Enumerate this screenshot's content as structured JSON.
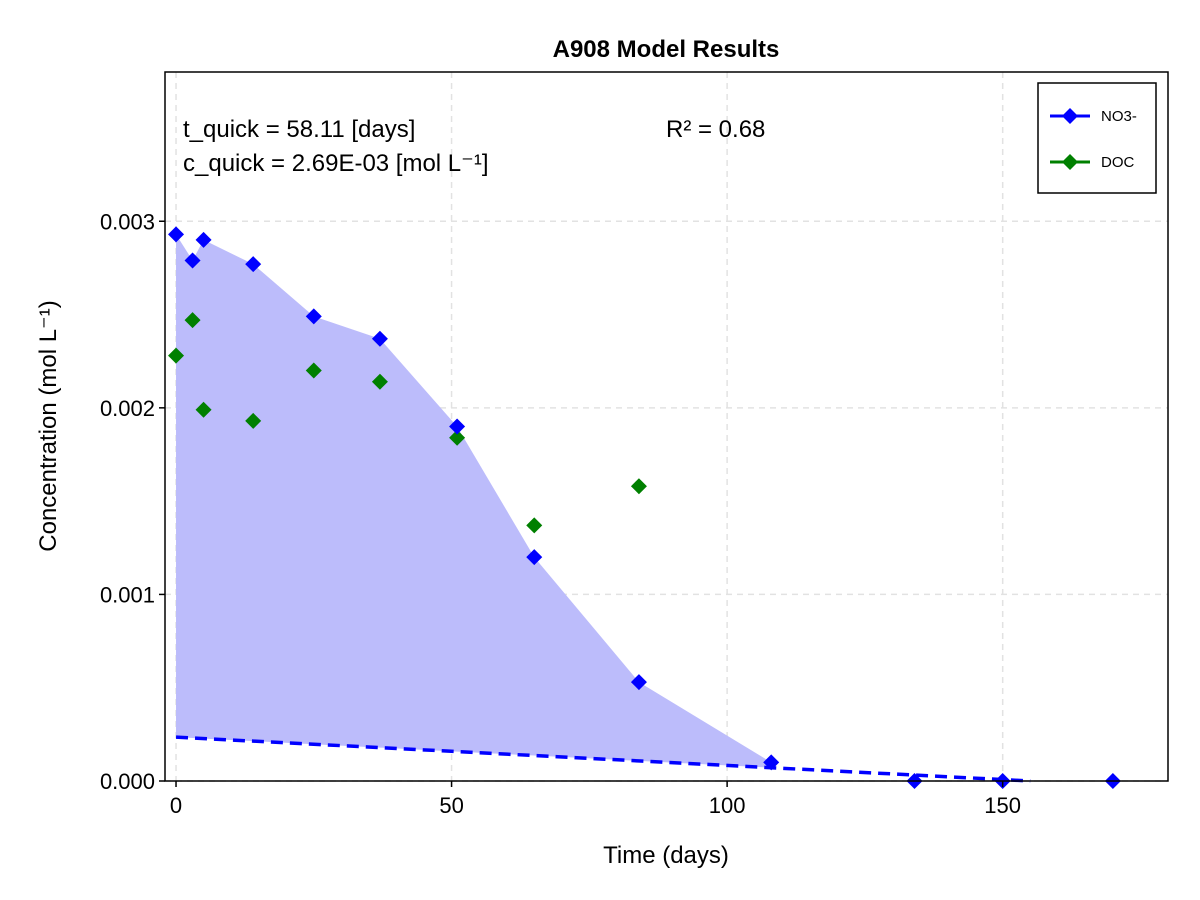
{
  "chart_data": {
    "type": "scatter",
    "title": "A908 Model Results",
    "xlabel": "Time (days)",
    "ylabel": "Concentration (mol L⁻¹)",
    "xlim": [
      -2,
      180
    ],
    "ylim": [
      0,
      0.0038
    ],
    "x_ticks": [
      0,
      50,
      100,
      150
    ],
    "x_tick_labels": [
      "0",
      "50",
      "100",
      "150"
    ],
    "y_ticks": [
      0,
      0.001,
      0.002,
      0.003
    ],
    "y_tick_labels": [
      "0.000",
      "0.001",
      "0.002",
      "0.003"
    ],
    "grid": true,
    "legend_position": "top-right",
    "annotations": {
      "t_quick": "t_quick = 58.11 [days]",
      "c_quick": "c_quick =  2.69E-03 [mol L⁻¹]",
      "r2": "R² = 0.68"
    },
    "series": [
      {
        "name": "NO3-",
        "color": "#0000ff",
        "marker": "diamond",
        "points": [
          [
            0,
            0.00293
          ],
          [
            3,
            0.00279
          ],
          [
            5,
            0.0029
          ],
          [
            14,
            0.00277
          ],
          [
            25,
            0.00249
          ],
          [
            37,
            0.00237
          ],
          [
            51,
            0.0019
          ],
          [
            65,
            0.0012
          ],
          [
            84,
            0.00053
          ],
          [
            108,
            0.0001
          ],
          [
            134,
            0.0
          ],
          [
            150,
            0.0
          ],
          [
            170,
            0.0
          ]
        ]
      },
      {
        "name": "DOC",
        "color": "#008000",
        "marker": "diamond",
        "points": [
          [
            0,
            0.00228
          ],
          [
            3,
            0.00247
          ],
          [
            5,
            0.00199
          ],
          [
            14,
            0.00193
          ],
          [
            25,
            0.0022
          ],
          [
            37,
            0.00214
          ],
          [
            51,
            0.00184
          ],
          [
            65,
            0.00137
          ],
          [
            84,
            0.00158
          ]
        ]
      }
    ],
    "model_line": {
      "color": "#0000ff",
      "style": "dashed",
      "points": [
        [
          0,
          0.000235
        ],
        [
          155,
          0.0
        ]
      ]
    },
    "fill_area": {
      "color": "#bcbcfb"
    }
  }
}
